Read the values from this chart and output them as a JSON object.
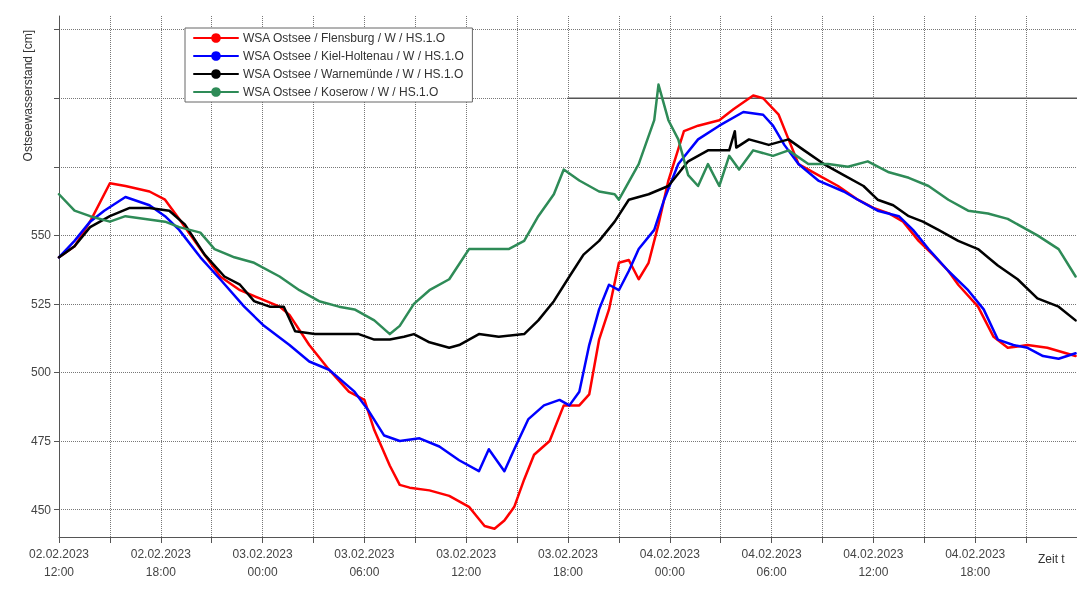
{
  "chart_data": {
    "type": "line",
    "ylabel": "Ostseewasserstand [cm]",
    "xlabel": "Zeit t",
    "xlim": [
      "2023-02-02T12:00",
      "2023-02-05T00:00"
    ],
    "xticks": [
      {
        "value": "2023-02-02T12:00",
        "label": "02.02.2023\n12:00"
      },
      {
        "value": "2023-02-02T15:00",
        "label": null
      },
      {
        "value": "2023-02-02T18:00",
        "label": "02.02.2023\n18:00"
      },
      {
        "value": "2023-02-02T21:00",
        "label": null
      },
      {
        "value": "2023-02-03T00:00",
        "label": "03.02.2023\n00:00"
      },
      {
        "value": "2023-02-03T03:00",
        "label": null
      },
      {
        "value": "2023-02-03T06:00",
        "label": "03.02.2023\n06:00"
      },
      {
        "value": "2023-02-03T09:00",
        "label": null
      },
      {
        "value": "2023-02-03T12:00",
        "label": "03.02.2023\n12:00"
      },
      {
        "value": "2023-02-03T15:00",
        "label": null
      },
      {
        "value": "2023-02-03T18:00",
        "label": "03.02.2023\n18:00"
      },
      {
        "value": "2023-02-03T21:00",
        "label": null
      },
      {
        "value": "2023-02-04T00:00",
        "label": "04.02.2023\n00:00"
      },
      {
        "value": "2023-02-04T03:00",
        "label": null
      },
      {
        "value": "2023-02-04T06:00",
        "label": "04.02.2023\n06:00"
      },
      {
        "value": "2023-02-04T09:00",
        "label": null
      },
      {
        "value": "2023-02-04T12:00",
        "label": "04.02.2023\n12:00"
      },
      {
        "value": "2023-02-04T15:00",
        "label": null
      },
      {
        "value": "2023-02-04T18:00",
        "label": "04.02.2023\n18:00"
      },
      {
        "value": "2023-02-04T21:00",
        "label": null
      }
    ],
    "ylim": [
      440,
      630
    ],
    "yticks": [
      450,
      475,
      500,
      525,
      550,
      {
        "value": 575,
        "label": null
      },
      {
        "value": 600,
        "label": null
      },
      {
        "value": 625,
        "label": null
      }
    ],
    "grid": true,
    "legend": "top left",
    "marker": "none",
    "series": [
      {
        "name": "WSA Ostsee / Flensburg / W / HS.1.O",
        "color": "#ff0000",
        "x": [
          "2023-02-02T12:00",
          "2023-02-02T12:55",
          "2023-02-02T13:50",
          "2023-02-02T15:00",
          "2023-02-02T15:55",
          "2023-02-02T17:20",
          "2023-02-02T18:15",
          "2023-02-02T19:05",
          "2023-02-02T20:20",
          "2023-02-02T21:30",
          "2023-02-02T22:40",
          "2023-02-02T23:50",
          "2023-02-03T01:00",
          "2023-02-03T01:35",
          "2023-02-03T02:45",
          "2023-02-03T03:55",
          "2023-02-03T05:05",
          "2023-02-03T06:00",
          "2023-02-03T06:35",
          "2023-02-03T07:30",
          "2023-02-03T08:05",
          "2023-02-03T08:40",
          "2023-02-03T09:50",
          "2023-02-03T11:00",
          "2023-02-03T12:10",
          "2023-02-03T13:05",
          "2023-02-03T13:40",
          "2023-02-03T14:15",
          "2023-02-03T14:50",
          "2023-02-03T15:25",
          "2023-02-03T16:00",
          "2023-02-03T16:55",
          "2023-02-03T17:45",
          "2023-02-03T18:40",
          "2023-02-03T19:15",
          "2023-02-03T19:50",
          "2023-02-03T20:25",
          "2023-02-03T21:00",
          "2023-02-03T21:35",
          "2023-02-03T22:10",
          "2023-02-03T22:45",
          "2023-02-03T23:20",
          "2023-02-03T23:55",
          "2023-02-04T00:50",
          "2023-02-04T01:40",
          "2023-02-04T02:55",
          "2023-02-04T03:45",
          "2023-02-04T04:55",
          "2023-02-04T05:30",
          "2023-02-04T06:25",
          "2023-02-04T07:00",
          "2023-02-04T07:35",
          "2023-02-04T08:45",
          "2023-02-04T09:55",
          "2023-02-04T11:05",
          "2023-02-04T12:00",
          "2023-02-04T12:55",
          "2023-02-04T13:45",
          "2023-02-04T14:40",
          "2023-02-04T15:30",
          "2023-02-04T16:25",
          "2023-02-04T17:00",
          "2023-02-04T18:10",
          "2023-02-04T19:05",
          "2023-02-04T19:55",
          "2023-02-04T21:05",
          "2023-02-04T22:15",
          "2023-02-04T23:55"
        ],
        "values": [
          542,
          546,
          555,
          569,
          568,
          566,
          563,
          556,
          545,
          535,
          530,
          527,
          524,
          521,
          510,
          501,
          493,
          490,
          479,
          466,
          459,
          458,
          457,
          455,
          451,
          444,
          443,
          446,
          451,
          461,
          470,
          475,
          488,
          488,
          492,
          512,
          523,
          540,
          541,
          534,
          540,
          554,
          570,
          588,
          590,
          592,
          596,
          601,
          600,
          594,
          585,
          576,
          572,
          568,
          563,
          560,
          558,
          555,
          548,
          543,
          537,
          532,
          524,
          513,
          509,
          510,
          509,
          506
        ]
      },
      {
        "name": "WSA Ostsee / Kiel-Holtenau / W / HS.1.O",
        "color": "#0000ff",
        "x": [
          "2023-02-02T12:00",
          "2023-02-02T12:55",
          "2023-02-02T13:50",
          "2023-02-02T14:40",
          "2023-02-02T15:55",
          "2023-02-02T17:20",
          "2023-02-02T18:15",
          "2023-02-02T19:05",
          "2023-02-02T20:20",
          "2023-02-02T21:30",
          "2023-02-02T22:55",
          "2023-02-03T00:05",
          "2023-02-03T01:35",
          "2023-02-03T02:45",
          "2023-02-03T03:55",
          "2023-02-03T05:25",
          "2023-02-03T06:15",
          "2023-02-03T07:10",
          "2023-02-03T08:05",
          "2023-02-03T09:15",
          "2023-02-03T10:25",
          "2023-02-03T11:35",
          "2023-02-03T12:45",
          "2023-02-03T13:20",
          "2023-02-03T14:15",
          "2023-02-03T14:50",
          "2023-02-03T15:40",
          "2023-02-03T16:35",
          "2023-02-03T17:30",
          "2023-02-03T18:05",
          "2023-02-03T18:40",
          "2023-02-03T19:15",
          "2023-02-03T19:50",
          "2023-02-03T20:25",
          "2023-02-03T21:00",
          "2023-02-03T21:35",
          "2023-02-03T22:10",
          "2023-02-03T23:05",
          "2023-02-03T23:40",
          "2023-02-04T00:30",
          "2023-02-04T01:40",
          "2023-02-04T02:55",
          "2023-02-04T04:20",
          "2023-02-04T05:30",
          "2023-02-04T06:05",
          "2023-02-04T06:45",
          "2023-02-04T07:35",
          "2023-02-04T08:45",
          "2023-02-04T10:15",
          "2023-02-04T11:05",
          "2023-02-04T12:15",
          "2023-02-04T13:30",
          "2023-02-04T14:20",
          "2023-02-04T15:15",
          "2023-02-04T16:25",
          "2023-02-04T17:35",
          "2023-02-04T18:30",
          "2023-02-04T19:20",
          "2023-02-04T20:15",
          "2023-02-04T21:05",
          "2023-02-04T22:00",
          "2023-02-04T22:55",
          "2023-02-04T23:55"
        ],
        "values": [
          542,
          548,
          555,
          559,
          564,
          561,
          557,
          552,
          542,
          534,
          524,
          517,
          510,
          504,
          501,
          493,
          486,
          477,
          475,
          476,
          473,
          468,
          464,
          472,
          464,
          472,
          483,
          488,
          490,
          488,
          493,
          510,
          523,
          532,
          530,
          537,
          545,
          552,
          563,
          576,
          585,
          590,
          595,
          594,
          590,
          583,
          576,
          570,
          566,
          563,
          559,
          557,
          552,
          545,
          537,
          530,
          523,
          512,
          510,
          509,
          506,
          505,
          507
        ]
      },
      {
        "name": "WSA Ostsee / Warnemünde / W / HS.1.O",
        "color": "#000000",
        "x": [
          "2023-02-02T12:00",
          "2023-02-02T12:55",
          "2023-02-02T13:50",
          "2023-02-02T15:00",
          "2023-02-02T16:10",
          "2023-02-02T17:20",
          "2023-02-02T18:30",
          "2023-02-02T19:25",
          "2023-02-02T20:35",
          "2023-02-02T21:45",
          "2023-02-02T22:40",
          "2023-02-02T23:30",
          "2023-02-03T00:25",
          "2023-02-03T01:15",
          "2023-02-03T01:55",
          "2023-02-03T03:05",
          "2023-02-03T04:50",
          "2023-02-03T05:40",
          "2023-02-03T06:35",
          "2023-02-03T07:30",
          "2023-02-03T08:20",
          "2023-02-03T08:55",
          "2023-02-03T09:50",
          "2023-02-03T11:00",
          "2023-02-03T11:35",
          "2023-02-03T12:45",
          "2023-02-03T13:55",
          "2023-02-03T15:25",
          "2023-02-03T16:15",
          "2023-02-03T17:10",
          "2023-02-03T18:05",
          "2023-02-03T18:55",
          "2023-02-03T19:50",
          "2023-02-03T20:45",
          "2023-02-03T21:35",
          "2023-02-03T22:45",
          "2023-02-03T23:55",
          "2023-02-04T01:05",
          "2023-02-04T02:15",
          "2023-02-04T03:30",
          "2023-02-04T03:50",
          "2023-02-04T03:55",
          "2023-02-04T04:40",
          "2023-02-04T05:50",
          "2023-02-04T07:00",
          "2023-02-04T07:55",
          "2023-02-04T09:05",
          "2023-02-04T10:15",
          "2023-02-04T11:25",
          "2023-02-04T12:15",
          "2023-02-04T13:10",
          "2023-02-04T14:05",
          "2023-02-04T14:55",
          "2023-02-04T15:50",
          "2023-02-04T17:00",
          "2023-02-04T18:10",
          "2023-02-04T19:20",
          "2023-02-04T20:30",
          "2023-02-04T21:40",
          "2023-02-04T22:55",
          "2023-02-04T23:55"
        ],
        "values": [
          542,
          546,
          553,
          557,
          560,
          560,
          559,
          554,
          543,
          535,
          532,
          526,
          524,
          524,
          515,
          514,
          514,
          514,
          512,
          512,
          513,
          514,
          511,
          509,
          510,
          514,
          513,
          514,
          519,
          526,
          535,
          543,
          548,
          555,
          563,
          565,
          568,
          577,
          581,
          581,
          588,
          582,
          585,
          583,
          585,
          581,
          576,
          572,
          568,
          563,
          561,
          557,
          555,
          552,
          548,
          545,
          539,
          534,
          527,
          524,
          519
        ]
      },
      {
        "name": "WSA Ostsee / Koserow / W / HS.1.O",
        "color": "#2e8b57",
        "x": [
          "2023-02-02T12:00",
          "2023-02-02T12:55",
          "2023-02-02T13:50",
          "2023-02-02T15:00",
          "2023-02-02T15:55",
          "2023-02-02T17:05",
          "2023-02-02T18:15",
          "2023-02-02T19:05",
          "2023-02-02T20:20",
          "2023-02-02T21:10",
          "2023-02-02T22:20",
          "2023-02-02T23:30",
          "2023-02-03T01:00",
          "2023-02-03T02:10",
          "2023-02-03T03:20",
          "2023-02-03T04:30",
          "2023-02-03T05:25",
          "2023-02-03T06:35",
          "2023-02-03T07:30",
          "2023-02-03T08:05",
          "2023-02-03T08:55",
          "2023-02-03T09:50",
          "2023-02-03T11:00",
          "2023-02-03T12:10",
          "2023-02-03T13:20",
          "2023-02-03T14:30",
          "2023-02-03T15:25",
          "2023-02-03T16:15",
          "2023-02-03T17:10",
          "2023-02-03T17:45",
          "2023-02-03T18:40",
          "2023-02-03T19:50",
          "2023-02-03T20:45",
          "2023-02-03T21:00",
          "2023-02-03T22:10",
          "2023-02-03T23:05",
          "2023-02-03T23:20",
          "2023-02-03T23:55",
          "2023-02-04T00:30",
          "2023-02-04T01:05",
          "2023-02-04T01:40",
          "2023-02-04T02:15",
          "2023-02-04T02:55",
          "2023-02-04T03:30",
          "2023-02-04T04:05",
          "2023-02-04T04:55",
          "2023-02-04T06:05",
          "2023-02-04T07:00",
          "2023-02-04T08:10",
          "2023-02-04T09:20",
          "2023-02-04T10:30",
          "2023-02-04T11:40",
          "2023-02-04T12:55",
          "2023-02-04T14:05",
          "2023-02-04T15:15",
          "2023-02-04T16:25",
          "2023-02-04T17:35",
          "2023-02-04T18:45",
          "2023-02-04T19:55",
          "2023-02-04T21:40",
          "2023-02-04T22:55",
          "2023-02-04T23:55"
        ],
        "values": [
          565,
          559,
          557,
          555,
          557,
          556,
          555,
          553,
          551,
          545,
          542,
          540,
          535,
          530,
          526,
          524,
          523,
          519,
          514,
          517,
          525,
          530,
          534,
          545,
          545,
          545,
          548,
          557,
          565,
          574,
          570,
          566,
          565,
          563,
          576,
          592,
          605,
          592,
          585,
          572,
          568,
          576,
          568,
          579,
          574,
          581,
          579,
          581,
          576,
          576,
          575,
          577,
          573,
          571,
          568,
          563,
          559,
          558,
          556,
          550,
          545,
          535
        ]
      },
      {
        "color": "#555555",
        "x": [
          "2023-02-03T18:00",
          "2023-02-05T00:00"
        ],
        "values": [
          600,
          600
        ]
      }
    ]
  }
}
